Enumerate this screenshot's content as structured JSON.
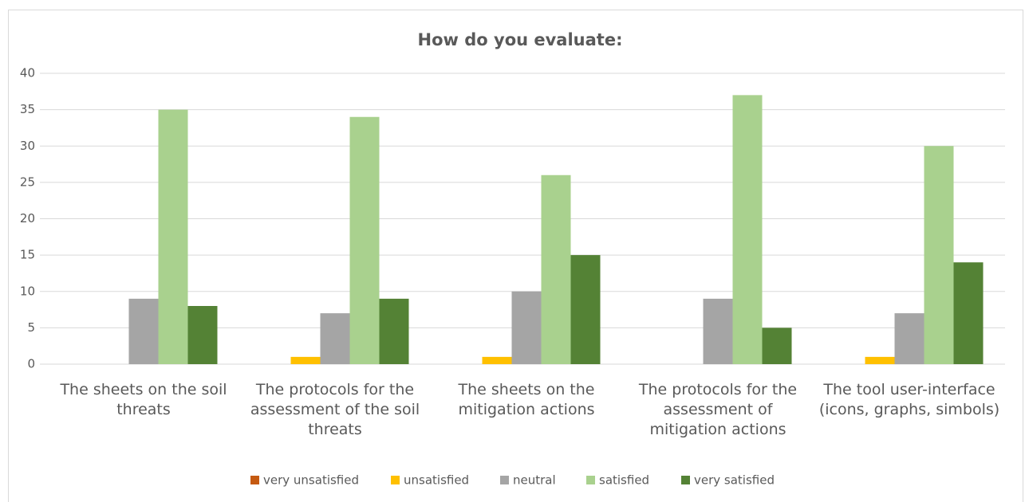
{
  "chart_data": {
    "type": "bar",
    "title": "How do you evaluate:",
    "categories": [
      "The sheets on the soil threats",
      "The protocols for the assessment of the soil threats",
      "The sheets on the mitigation actions",
      "The protocols for the assessment of mitigation actions",
      "The tool user-interface (icons, graphs, simbols)"
    ],
    "series": [
      {
        "name": "very unsatisfied",
        "color": "#c55a11",
        "values": [
          0,
          0,
          0,
          0,
          0
        ]
      },
      {
        "name": "unsatisfied",
        "color": "#ffc000",
        "values": [
          0,
          1,
          1,
          0,
          1
        ]
      },
      {
        "name": "neutral",
        "color": "#a5a5a5",
        "values": [
          9,
          7,
          10,
          9,
          7
        ]
      },
      {
        "name": "satisfied",
        "color": "#a9d18e",
        "values": [
          35,
          34,
          26,
          37,
          30
        ]
      },
      {
        "name": "very satisfied",
        "color": "#548235",
        "values": [
          8,
          9,
          15,
          5,
          14
        ]
      }
    ],
    "ylim": [
      0,
      40
    ],
    "yticks": [
      0,
      5,
      10,
      15,
      20,
      25,
      30,
      35,
      40
    ],
    "grid": true,
    "legend": "bottom"
  }
}
